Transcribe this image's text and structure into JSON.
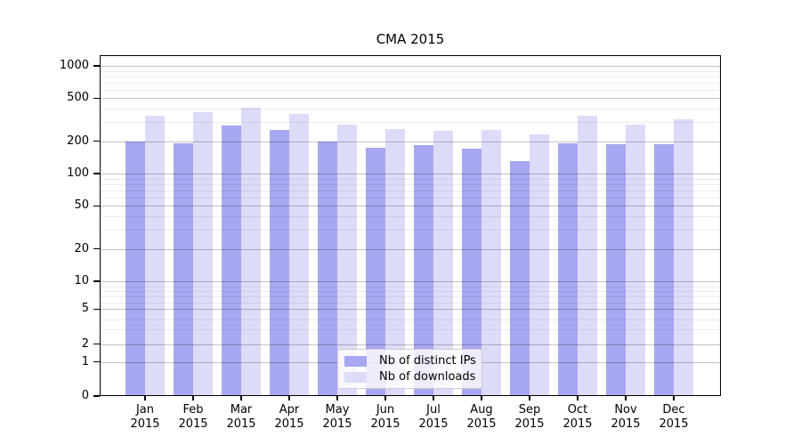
{
  "figure": {
    "title": "CMA 2015"
  },
  "chart_data": {
    "type": "bar",
    "title": "CMA 2015",
    "x_tick_month_labels": [
      "Jan",
      "Feb",
      "Mar",
      "Apr",
      "May",
      "Jun",
      "Jul",
      "Aug",
      "Sep",
      "Oct",
      "Nov",
      "Dec"
    ],
    "x_tick_year_label": "2015",
    "series": [
      {
        "name": "Nb of distinct IPs",
        "color": "#a7a7f2",
        "values": [
          200,
          192,
          277,
          254,
          200,
          174,
          183,
          172,
          131,
          192,
          186,
          186
        ]
      },
      {
        "name": "Nb of downloads",
        "color": "#dcdcf8",
        "values": [
          345,
          370,
          410,
          361,
          285,
          259,
          248,
          255,
          233,
          344,
          286,
          322
        ]
      }
    ],
    "yscale": "symlog",
    "ylim": [
      0,
      1100
    ],
    "y_major_ticks": [
      0,
      1,
      2,
      5,
      10,
      20,
      50,
      100,
      200,
      500,
      1000
    ],
    "y_minor_gridlines": [
      3,
      4,
      6,
      7,
      8,
      9,
      30,
      40,
      60,
      70,
      80,
      90,
      300,
      400,
      600,
      700,
      800,
      900
    ],
    "grid": true,
    "legend_position": "lower center",
    "legend_labels": [
      "Nb of distinct IPs",
      "Nb of downloads"
    ]
  },
  "colors": {
    "bar_distinct_ips": "#a7a7f2",
    "bar_downloads": "#dcdcf8",
    "axis_frame": "#000000",
    "grid_major": "rgba(0,0,0,0.24)",
    "grid_minor": "rgba(0,0,0,0.07)",
    "legend_border": "#cccccc",
    "legend_background": "rgba(255,255,255,0.8)"
  }
}
